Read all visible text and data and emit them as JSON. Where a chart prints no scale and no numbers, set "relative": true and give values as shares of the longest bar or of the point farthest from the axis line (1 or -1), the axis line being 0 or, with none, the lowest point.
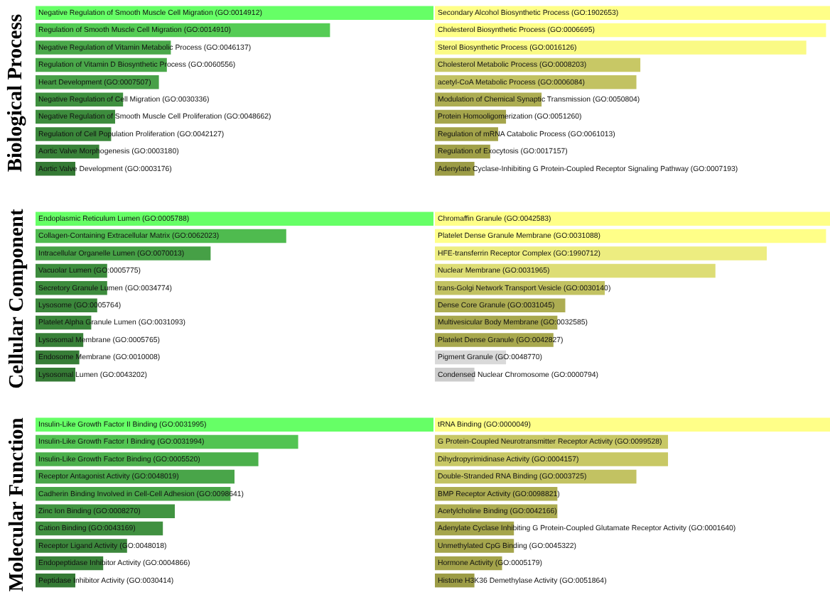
{
  "chart_data": [
    {
      "type": "bar",
      "orientation": "horizontal",
      "relative": true,
      "ylabel": "Biological Process",
      "categories": [
        "Negative Regulation of Smooth Muscle Cell Migration (GO:0014912)",
        "Regulation of Smooth Muscle Cell Migration (GO:0014910)",
        "Negative Regulation of Vitamin Metabolic Process (GO:0046137)",
        "Regulation of Vitamin D Biosynthetic Process (GO:0060556)",
        "Heart Development (GO:0007507)",
        "Negative Regulation of Cell Migration (GO:0030336)",
        "Negative Regulation of Smooth Muscle Cell Proliferation (GO:0048662)",
        "Regulation of Cell Population Proliferation (GO:0042127)",
        "Aortic Valve Morphogenesis (GO:0003180)",
        "Aortic Valve Development (GO:0003176)"
      ],
      "values": [
        1,
        0.74,
        0.34,
        0.33,
        0.31,
        0.22,
        0.2,
        0.19,
        0.16,
        0.1
      ],
      "colors": [
        "#66ff66",
        "#55cc55",
        "#4aa84a",
        "#4aa84a",
        "#48a048",
        "#3f903f",
        "#3d8c3d",
        "#3b873b",
        "#398239",
        "#357a35"
      ]
    },
    {
      "type": "bar",
      "orientation": "horizontal",
      "relative": true,
      "categories": [
        "Secondary Alcohol Biosynthetic Process (GO:1902653)",
        "Cholesterol Biosynthetic Process (GO:0006695)",
        "Sterol Biosynthetic Process (GO:0016126)",
        "Cholesterol Metabolic Process (GO:0008203)",
        "acetyl-CoA Metabolic Process (GO:0006084)",
        "Modulation of Chemical Synaptic Transmission (GO:0050804)",
        "Protein Homooligomerization (GO:0051260)",
        "Regulation of mRNA Catabolic Process (GO:0061013)",
        "Regulation of Exocytosis (GO:0017157)",
        "Adenylate Cyclase-Inhibiting G Protein-Coupled Receptor Signaling Pathway (GO:0007193)"
      ],
      "values": [
        1,
        0.99,
        0.94,
        0.52,
        0.51,
        0.27,
        0.18,
        0.16,
        0.14,
        0.1
      ],
      "colors": [
        "#ffff88",
        "#ffff88",
        "#fafa85",
        "#c8c865",
        "#c2c262",
        "#adad52",
        "#a5a54c",
        "#a3a34a",
        "#a0a048",
        "#9c9c46"
      ]
    },
    {
      "type": "bar",
      "orientation": "horizontal",
      "relative": true,
      "ylabel": "Cellular Component",
      "categories": [
        "Endoplasmic Reticulum Lumen (GO:0005788)",
        "Collagen-Containing Extracellular Matrix (GO:0062023)",
        "Intracellular Organelle Lumen (GO:0070013)",
        "Vacuolar Lumen (GO:0005775)",
        "Secretory Granule Lumen (GO:0034774)",
        "Lysosome (GO:0005764)",
        "Platelet Alpha Granule Lumen (GO:0031093)",
        "Lysosomal Membrane (GO:0005765)",
        "Endosome Membrane (GO:0010008)",
        "Lysosomal Lumen (GO:0043202)"
      ],
      "values": [
        1,
        0.63,
        0.44,
        0.18,
        0.18,
        0.155,
        0.14,
        0.12,
        0.11,
        0.1
      ],
      "colors": [
        "#66ff66",
        "#4fbb4f",
        "#46a046",
        "#3d8c3d",
        "#3d8c3d",
        "#3b873b",
        "#3a853a",
        "#388038",
        "#377d37",
        "#357a35"
      ]
    },
    {
      "type": "bar",
      "orientation": "horizontal",
      "relative": true,
      "categories": [
        "Chromaffin Granule (GO:0042583)",
        "Platelet Dense Granule Membrane (GO:0031088)",
        "HFE-transferrin Receptor Complex (GO:1990712)",
        "Nuclear Membrane (GO:0031965)",
        "trans-Golgi Network Transport Vesicle (GO:0030140)",
        "Dense Core Granule (GO:0031045)",
        "Multivesicular Body Membrane (GO:0032585)",
        "Platelet Dense Granule (GO:0042827)",
        "Pigment Granule (GO:0048770)",
        "Condensed Nuclear Chromosome (GO:0000794)"
      ],
      "values": [
        1,
        0.99,
        0.84,
        0.71,
        0.43,
        0.33,
        0.31,
        0.3,
        0.18,
        0.1
      ],
      "colors": [
        "#ffff88",
        "#ffff88",
        "#eded80",
        "#dddd75",
        "#c2c262",
        "#adad52",
        "#a8a84e",
        "#a8a84e",
        "#d9d9d9",
        "#cccccc"
      ]
    },
    {
      "type": "bar",
      "orientation": "horizontal",
      "relative": true,
      "ylabel": "Molecular Function",
      "categories": [
        "Insulin-Like Growth Factor II Binding (GO:0031995)",
        "Insulin-Like Growth Factor I Binding (GO:0031994)",
        "Insulin-Like Growth Factor Binding (GO:0005520)",
        "Receptor Antagonist Activity (GO:0048019)",
        "Cadherin Binding Involved in Cell-Cell Adhesion (GO:0098641)",
        "Zinc Ion Binding (GO:0008270)",
        "Cation Binding (GO:0043169)",
        "Receptor Ligand Activity (GO:0048018)",
        "Endopeptidase Inhibitor Activity (GO:0004866)",
        "Peptidase Inhibitor Activity (GO:0030414)"
      ],
      "values": [
        1,
        0.66,
        0.56,
        0.5,
        0.49,
        0.35,
        0.32,
        0.23,
        0.17,
        0.1
      ],
      "colors": [
        "#66ff66",
        "#52c452",
        "#4cb04c",
        "#49a549",
        "#49a549",
        "#419441",
        "#409040",
        "#3c873c",
        "#398239",
        "#357a35"
      ]
    },
    {
      "type": "bar",
      "orientation": "horizontal",
      "relative": true,
      "categories": [
        "tRNA Binding (GO:0000049)",
        "G Protein-Coupled Neurotransmitter Receptor Activity (GO:0099528)",
        "Dihydropyrimidinase Activity (GO:0004157)",
        "Double-Stranded RNA Binding (GO:0003725)",
        "BMP Receptor Activity (GO:0098821)",
        "Acetylcholine Binding (GO:0042166)",
        "Adenylate Cyclase Inhibiting G Protein-Coupled Glutamate Receptor Activity (GO:0001640)",
        "Unmethylated CpG Binding (GO:0045322)",
        "Hormone Activity (GO:0005179)",
        "Histone H3K36 Demethylase Activity (GO:0051864)"
      ],
      "values": [
        1,
        0.59,
        0.59,
        0.51,
        0.31,
        0.31,
        0.2,
        0.2,
        0.17,
        0.1
      ],
      "colors": [
        "#ffff88",
        "#c8c865",
        "#c8c865",
        "#c2c262",
        "#adad52",
        "#adad52",
        "#a5a54c",
        "#a5a54c",
        "#a3a34a",
        "#9c9c46"
      ]
    }
  ]
}
